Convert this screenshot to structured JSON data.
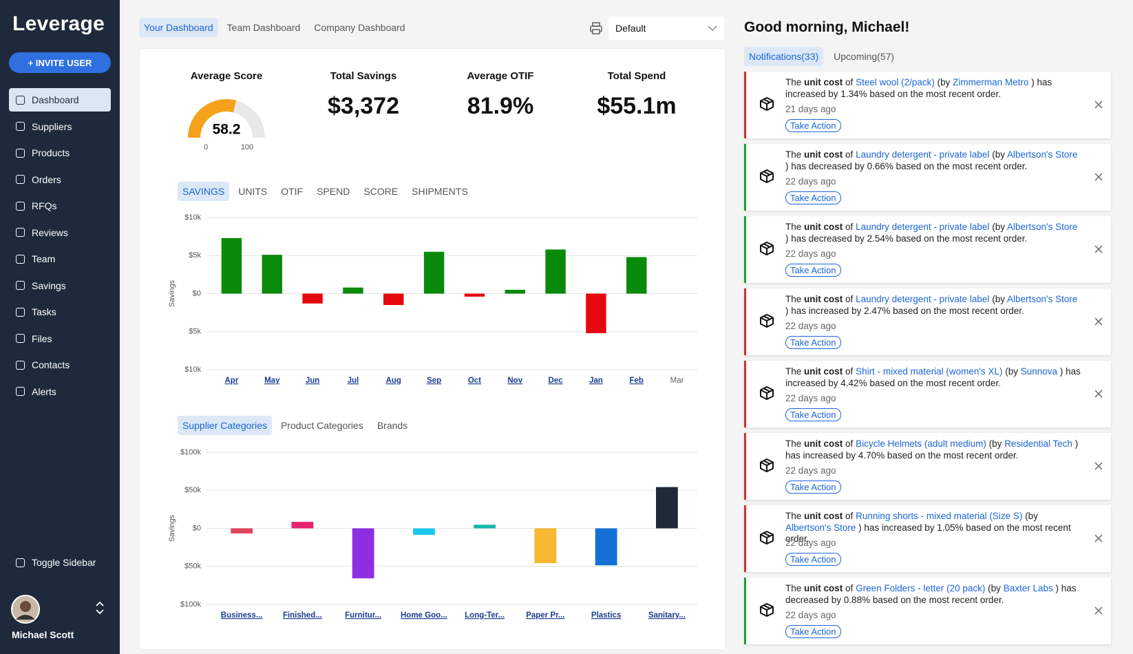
{
  "sidebar": {
    "brand": "Leverage",
    "invite": "+ INVITE USER",
    "nav": [
      "Dashboard",
      "Suppliers",
      "Products",
      "Orders",
      "RFQs",
      "Reviews",
      "Team",
      "Savings",
      "Tasks",
      "Files",
      "Contacts",
      "Alerts"
    ],
    "active_index": 0,
    "toggle": "Toggle Sidebar",
    "user": "Michael Scott"
  },
  "dashboard_tabs": {
    "items": [
      "Your Dashboard",
      "Team Dashboard",
      "Company Dashboard"
    ],
    "active": 0
  },
  "view_select": "Default",
  "gauge": {
    "label": "Average Score",
    "value": 58.2,
    "min": 0,
    "max": 100,
    "color": "#f5a11c"
  },
  "kpis": [
    {
      "label": "Total Savings",
      "value": "$3,372"
    },
    {
      "label": "Average OTIF",
      "value": "81.9%"
    },
    {
      "label": "Total Spend",
      "value": "$55.1m"
    }
  ],
  "metric_tabs": {
    "items": [
      "SAVINGS",
      "UNITS",
      "OTIF",
      "SPEND",
      "SCORE",
      "SHIPMENTS"
    ],
    "active": 0
  },
  "category_tabs": {
    "items": [
      "Supplier Categories",
      "Product Categories",
      "Brands"
    ],
    "active": 0
  },
  "chart_data": [
    {
      "type": "bar",
      "y_label": "Savings",
      "categories": [
        "Apr",
        "May",
        "Jun",
        "Jul",
        "Aug",
        "Sep",
        "Oct",
        "Nov",
        "Dec",
        "Jan",
        "Feb",
        "Mar"
      ],
      "values": [
        7300,
        5100,
        -1300,
        800,
        -1500,
        5500,
        -400,
        500,
        5800,
        -5200,
        4800,
        null
      ],
      "color": "#0a8a0a",
      "negative_color": "#e5080f",
      "ylim": [
        -10000,
        10000
      ],
      "yticks": [
        {
          "value": 10000,
          "label": "$10k"
        },
        {
          "value": 5000,
          "label": "$5k"
        },
        {
          "value": 0,
          "label": "$0"
        },
        {
          "value": -5000,
          "label": "$5k"
        },
        {
          "value": -10000,
          "label": "$10k"
        }
      ],
      "grid": true
    },
    {
      "type": "bar",
      "y_label": "Savings",
      "categories": [
        "Business...",
        "Finished...",
        "Furnitur...",
        "Home Goo...",
        "Long-Ter...",
        "Paper Pr...",
        "Plastics",
        "Sanitary..."
      ],
      "values": [
        -6700,
        8600,
        -65700,
        -8600,
        4800,
        -45700,
        -48600,
        54300
      ],
      "colors": [
        "#e0445e",
        "#e8246f",
        "#8e2de2",
        "#1ec8ee",
        "#18b6b0",
        "#f7b731",
        "#1570d6",
        "#1f2937"
      ],
      "ylim": [
        -100000,
        100000
      ],
      "yticks": [
        {
          "value": 100000,
          "label": "$100k"
        },
        {
          "value": 50000,
          "label": "$50k"
        },
        {
          "value": 0,
          "label": "$0"
        },
        {
          "value": -50000,
          "label": "$50k"
        },
        {
          "value": -100000,
          "label": "$100k"
        }
      ],
      "grid": true
    }
  ],
  "greeting": "Good morning, Michael!",
  "notification_tabs": {
    "items": [
      "Notifications(33)",
      "Upcoming(57)"
    ],
    "active": 0
  },
  "notification_parts": {
    "lead": "The",
    "bold": "unit cost",
    "of": "of",
    "by": "(by",
    "close": ")",
    "action": "Take Action"
  },
  "notifications": [
    {
      "product": "Steel wool (2/pack)",
      "supplier": "Zimmerman Metro",
      "tail": "has increased by 1.34% based on the most recent order.",
      "time": "21 days ago",
      "color": "#d32f2f"
    },
    {
      "product": "Laundry detergent - private label",
      "supplier": "Albertson's Store",
      "tail": "has decreased by 0.66% based on the most recent order.",
      "time": "22 days ago",
      "color": "#1e9e3a"
    },
    {
      "product": "Laundry detergent - private label",
      "supplier": "Albertson's Store",
      "tail": "has decreased by 2.54% based on the most recent order.",
      "time": "22 days ago",
      "color": "#1e9e3a"
    },
    {
      "product": "Laundry detergent - private label",
      "supplier": "Albertson's Store",
      "tail": "has increased by 2.47% based on the most recent order.",
      "time": "22 days ago",
      "color": "#d32f2f"
    },
    {
      "product": "Shirt - mixed material (women's XL)",
      "supplier": "Sunnova",
      "tail": "has increased by 4.42% based on the most recent order.",
      "time": "22 days ago",
      "color": "#d32f2f"
    },
    {
      "product": "Bicycle Helmets (adult medium)",
      "supplier": "Residential Tech",
      "tail": "has increased by 4.70% based on the most recent order.",
      "time": "22 days ago",
      "color": "#d32f2f"
    },
    {
      "product": "Running shorts - mixed material (Size S)",
      "supplier": "Albertson's Store",
      "tail": "has increased by 1.05% based on the most recent order.",
      "time": "22 days ago",
      "color": "#d32f2f"
    },
    {
      "product": "Green Folders - letter (20 pack)",
      "supplier": "Baxter Labs",
      "tail": "has decreased by 0.88% based on the most recent order.",
      "time": "22 days ago",
      "color": "#1e9e3a"
    }
  ]
}
